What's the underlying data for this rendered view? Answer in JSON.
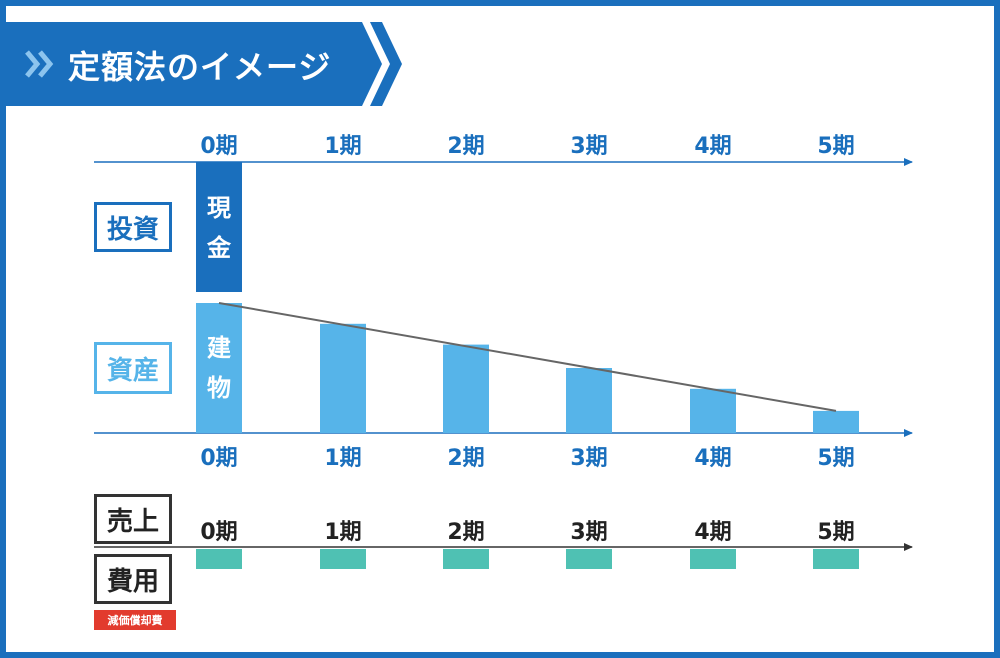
{
  "title": "定額法のイメージ",
  "colors": {
    "brand": "#1a6fbd",
    "asset": "#56b4e9",
    "cost": "#4fc1b3",
    "trend": "#666666",
    "depreciation_tag": "#e23b2e"
  },
  "periods": [
    "0期",
    "1期",
    "2期",
    "3期",
    "4期",
    "5期"
  ],
  "labels": {
    "investment": "投資",
    "asset": "資産",
    "sales": "売上",
    "cost": "費用",
    "depreciation": "減価償却費",
    "cash": [
      "現",
      "金"
    ],
    "building": [
      "建",
      "物"
    ]
  },
  "chart_data": {
    "type": "bar",
    "categories": [
      "0期",
      "1期",
      "2期",
      "3期",
      "4期",
      "5期"
    ],
    "series": [
      {
        "name": "資産",
        "values": [
          100,
          84,
          68,
          50,
          34,
          17
        ]
      },
      {
        "name": "費用",
        "values": [
          1,
          1,
          1,
          1,
          1,
          1
        ]
      }
    ],
    "investment": {
      "category": "0期",
      "name": "現金"
    },
    "ylim": [
      0,
      100
    ],
    "trend_line": true
  }
}
